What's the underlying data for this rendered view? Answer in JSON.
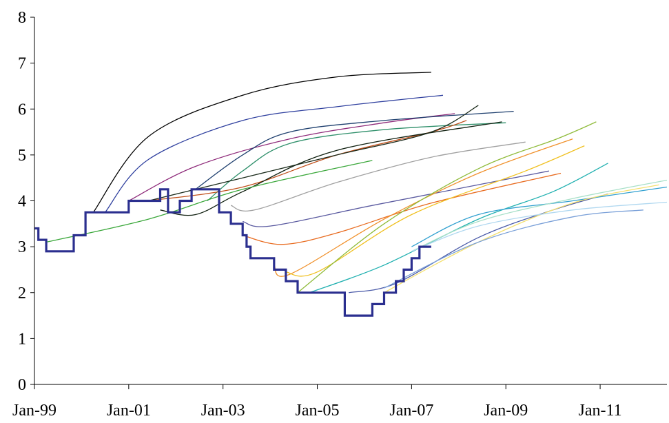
{
  "chart_data": {
    "type": "line",
    "title": "",
    "xlabel": "",
    "ylabel": "",
    "xlim": [
      "1999-01",
      "2012-06"
    ],
    "ylim": [
      0,
      8
    ],
    "grid": false,
    "legend": "none",
    "x_ticks": [
      "Jan-99",
      "Jan-01",
      "Jan-03",
      "Jan-05",
      "Jan-07",
      "Jan-09",
      "Jan-11"
    ],
    "y_ticks": [
      "0",
      "1",
      "2",
      "3",
      "4",
      "5",
      "6",
      "7",
      "8"
    ],
    "policy_rate": {
      "color": "#2b2f8f",
      "steps": [
        [
          "1999-01",
          3.4
        ],
        [
          "1999-02",
          3.15
        ],
        [
          "1999-04",
          2.9
        ],
        [
          "1999-11",
          3.25
        ],
        [
          "2000-02",
          3.75
        ],
        [
          "2001-01",
          4.0
        ],
        [
          "2001-09",
          4.25
        ],
        [
          "2001-11",
          3.75
        ],
        [
          "2002-02",
          4.0
        ],
        [
          "2002-05",
          4.25
        ],
        [
          "2002-12",
          3.75
        ],
        [
          "2003-03",
          3.5
        ],
        [
          "2003-06",
          3.25
        ],
        [
          "2003-07",
          3.0
        ],
        [
          "2003-08",
          2.75
        ],
        [
          "2004-02",
          2.5
        ],
        [
          "2004-05",
          2.25
        ],
        [
          "2004-08",
          2.0
        ],
        [
          "2005-08",
          1.5
        ],
        [
          "2006-03",
          1.75
        ],
        [
          "2006-06",
          2.0
        ],
        [
          "2006-09",
          2.25
        ],
        [
          "2006-11",
          2.5
        ],
        [
          "2007-01",
          2.75
        ],
        [
          "2007-03",
          3.0
        ],
        [
          "2007-06",
          3.0
        ]
      ]
    },
    "series": [
      {
        "color": "#000000",
        "points": [
          [
            "2000-04",
            3.75
          ],
          [
            "2001-06",
            5.4
          ],
          [
            "2003-06",
            6.3
          ],
          [
            "2005-06",
            6.7
          ],
          [
            "2007-06",
            6.8
          ]
        ]
      },
      {
        "color": "#2e3f9e",
        "points": [
          [
            "2000-07",
            3.75
          ],
          [
            "2001-06",
            4.9
          ],
          [
            "2003-06",
            5.75
          ],
          [
            "2005-06",
            6.05
          ],
          [
            "2007-09",
            6.3
          ]
        ]
      },
      {
        "color": "#8e2a7a",
        "points": [
          [
            "2001-01",
            4.0
          ],
          [
            "2002-06",
            4.75
          ],
          [
            "2004-06",
            5.35
          ],
          [
            "2006-06",
            5.7
          ],
          [
            "2007-12",
            5.9
          ]
        ]
      },
      {
        "color": "#1e3f6e",
        "points": [
          [
            "2002-06",
            4.25
          ],
          [
            "2003-06",
            5.0
          ],
          [
            "2004-06",
            5.5
          ],
          [
            "2006-06",
            5.75
          ],
          [
            "2009-03",
            5.95
          ]
        ]
      },
      {
        "color": "#2e8f6a",
        "points": [
          [
            "2002-09",
            4.0
          ],
          [
            "2003-06",
            4.65
          ],
          [
            "2004-06",
            5.25
          ],
          [
            "2006-06",
            5.55
          ],
          [
            "2009-01",
            5.7
          ]
        ]
      },
      {
        "color": "#c0501c",
        "points": [
          [
            "2001-06",
            4.0
          ],
          [
            "2003-06",
            4.3
          ],
          [
            "2005-06",
            5.0
          ],
          [
            "2007-06",
            5.5
          ],
          [
            "2008-03",
            5.75
          ]
        ]
      },
      {
        "color": "#1a2a1a",
        "points": [
          [
            "2001-06",
            4.0
          ],
          [
            "2003-06",
            4.5
          ],
          [
            "2005-06",
            5.0
          ],
          [
            "2007-06",
            5.5
          ],
          [
            "2008-06",
            6.08
          ]
        ]
      },
      {
        "color": "#0f1f0f",
        "points": [
          [
            "2001-09",
            3.8
          ],
          [
            "2002-06",
            3.7
          ],
          [
            "2003-06",
            4.2
          ],
          [
            "2005-06",
            5.1
          ],
          [
            "2008-12",
            5.72
          ]
        ]
      },
      {
        "color": "#3aa73a",
        "points": [
          [
            "1999-04",
            3.1
          ],
          [
            "2001-06",
            3.6
          ],
          [
            "2003-06",
            4.25
          ],
          [
            "2006-03",
            4.88
          ]
        ]
      },
      {
        "color": "#a0a0a0",
        "points": [
          [
            "2003-03",
            3.9
          ],
          [
            "2003-09",
            3.8
          ],
          [
            "2005-06",
            4.4
          ],
          [
            "2007-06",
            4.95
          ],
          [
            "2009-06",
            5.28
          ]
        ]
      },
      {
        "color": "#5a5aa0",
        "points": [
          [
            "2003-06",
            3.55
          ],
          [
            "2004-01",
            3.45
          ],
          [
            "2006-03",
            3.9
          ],
          [
            "2008-03",
            4.3
          ],
          [
            "2009-12",
            4.65
          ]
        ]
      },
      {
        "color": "#e86a1e",
        "points": [
          [
            "2003-06",
            3.25
          ],
          [
            "2004-04",
            3.05
          ],
          [
            "2005-06",
            3.3
          ],
          [
            "2007-06",
            3.95
          ],
          [
            "2010-03",
            4.6
          ]
        ]
      },
      {
        "color": "#f0902a",
        "points": [
          [
            "2004-02",
            2.6
          ],
          [
            "2004-06",
            2.4
          ],
          [
            "2006-06",
            3.6
          ],
          [
            "2008-06",
            4.6
          ],
          [
            "2010-06",
            5.35
          ]
        ]
      },
      {
        "color": "#f0c020",
        "points": [
          [
            "2004-05",
            2.45
          ],
          [
            "2005-01",
            2.45
          ],
          [
            "2007-01",
            3.7
          ],
          [
            "2009-06",
            4.65
          ],
          [
            "2010-09",
            5.2
          ]
        ]
      },
      {
        "color": "#8fbb3a",
        "points": [
          [
            "2004-08",
            2.0
          ],
          [
            "2006-06",
            3.5
          ],
          [
            "2008-06",
            4.7
          ],
          [
            "2010-02",
            5.35
          ],
          [
            "2010-12",
            5.72
          ]
        ]
      },
      {
        "color": "#20b0b0",
        "points": [
          [
            "2004-11",
            2.0
          ],
          [
            "2006-06",
            2.6
          ],
          [
            "2008-06",
            3.6
          ],
          [
            "2010-01",
            4.2
          ],
          [
            "2011-03",
            4.82
          ]
        ]
      },
      {
        "color": "#4a5aa8",
        "points": [
          [
            "2005-09",
            2.0
          ],
          [
            "2006-09",
            2.2
          ],
          [
            "2008-06",
            3.2
          ],
          [
            "2010-01",
            3.8
          ],
          [
            "2011-03",
            4.15
          ]
        ]
      },
      {
        "color": "#30a0d0",
        "points": [
          [
            "2007-01",
            3.0
          ],
          [
            "2008-06",
            3.7
          ],
          [
            "2010-06",
            4.0
          ],
          [
            "2012-06",
            4.3
          ]
        ]
      },
      {
        "color": "#f4e070",
        "points": [
          [
            "2006-06",
            2.0
          ],
          [
            "2008-06",
            3.1
          ],
          [
            "2010-06",
            3.95
          ],
          [
            "2012-04",
            4.35
          ]
        ]
      },
      {
        "color": "#a8e0c8",
        "points": [
          [
            "2007-01",
            2.9
          ],
          [
            "2008-06",
            3.55
          ],
          [
            "2010-06",
            4.05
          ],
          [
            "2012-06",
            4.45
          ]
        ]
      },
      {
        "color": "#b0d8f0",
        "points": [
          [
            "2007-01",
            2.9
          ],
          [
            "2008-06",
            3.45
          ],
          [
            "2010-06",
            3.8
          ],
          [
            "2012-06",
            3.97
          ]
        ]
      },
      {
        "color": "#7aa0d8",
        "points": [
          [
            "2006-06",
            2.1
          ],
          [
            "2008-06",
            3.1
          ],
          [
            "2010-06",
            3.65
          ],
          [
            "2011-12",
            3.8
          ]
        ]
      }
    ]
  }
}
